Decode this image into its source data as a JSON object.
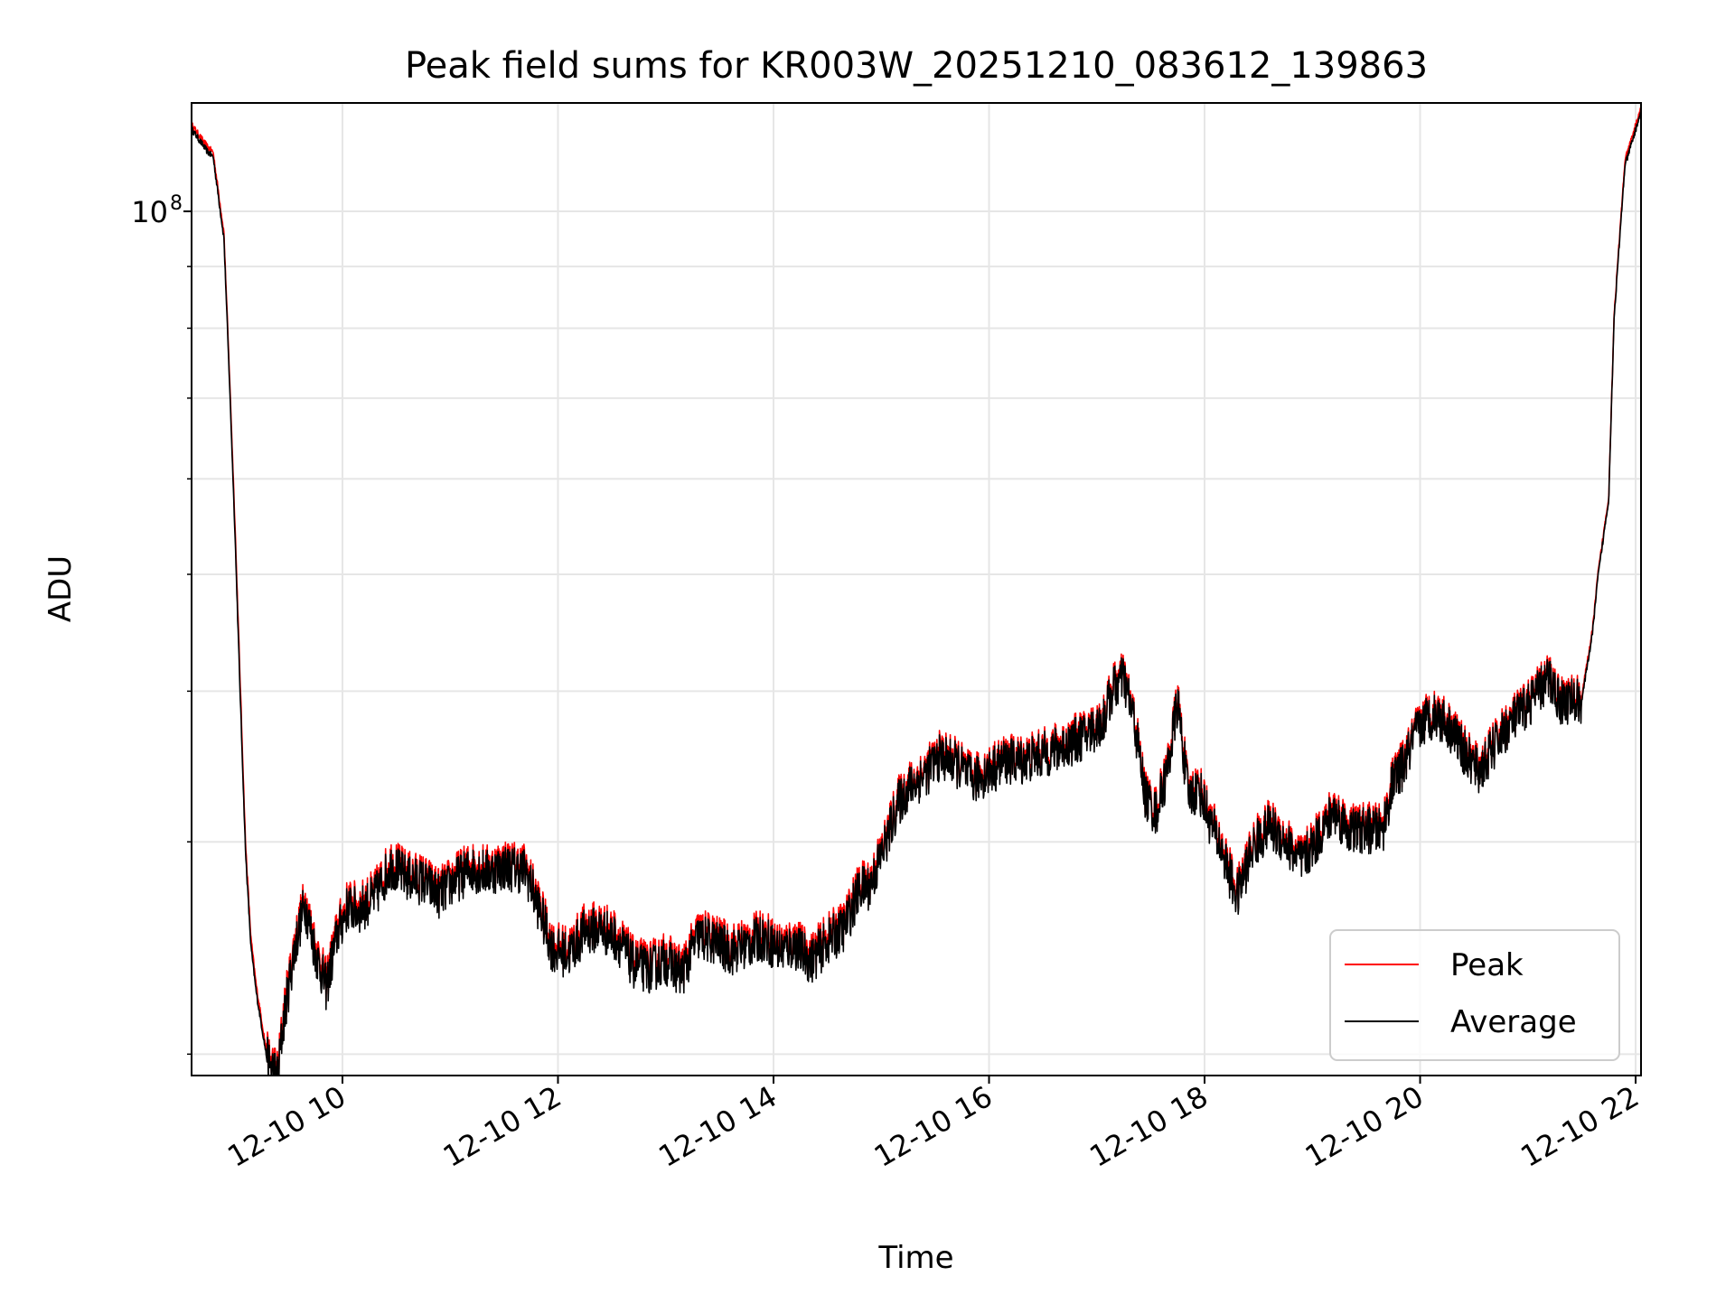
{
  "chart_data": {
    "type": "line",
    "title": "Peak field sums for KR003W_20251210_083612_139863",
    "xlabel": "Time",
    "ylabel": "ADU",
    "y_scale": "log",
    "xlim_hours": [
      8.6,
      22.05
    ],
    "ylim": [
      19200000,
      123000000
    ],
    "x_ticks": [
      {
        "hour": 10,
        "label": "12-10 10"
      },
      {
        "hour": 12,
        "label": "12-10 12"
      },
      {
        "hour": 14,
        "label": "12-10 14"
      },
      {
        "hour": 16,
        "label": "12-10 16"
      },
      {
        "hour": 18,
        "label": "12-10 18"
      },
      {
        "hour": 20,
        "label": "12-10 20"
      },
      {
        "hour": 22,
        "label": "12-10 22"
      }
    ],
    "y_major_tick": {
      "value": 100000000,
      "base": "10",
      "exponent": "8"
    },
    "y_minor_ticks": [
      20000000,
      30000000,
      40000000,
      50000000,
      60000000,
      70000000,
      80000000,
      90000000
    ],
    "grid": true,
    "legend_position": "lower-right",
    "colors": {
      "peak": "#ff0000",
      "average": "#000000",
      "grid": "#e6e6e6"
    },
    "series": [
      {
        "name": "Peak",
        "color": "#ff0000",
        "x": [
          8.6,
          8.75,
          8.8,
          8.9,
          8.95,
          9.0,
          9.05,
          9.1,
          9.15,
          9.2,
          9.3,
          9.4,
          9.45,
          9.55,
          9.65,
          9.75,
          9.85,
          9.95,
          10.05,
          10.15,
          10.3,
          10.45,
          10.6,
          10.75,
          10.9,
          11.05,
          11.2,
          11.35,
          11.5,
          11.7,
          11.85,
          11.95,
          12.1,
          12.25,
          12.4,
          12.55,
          12.7,
          12.85,
          13.0,
          13.15,
          13.3,
          13.45,
          13.6,
          13.75,
          13.9,
          14.05,
          14.2,
          14.35,
          14.5,
          14.65,
          14.8,
          14.9,
          15.05,
          15.15,
          15.25,
          15.4,
          15.55,
          15.7,
          15.85,
          16.0,
          16.15,
          16.3,
          16.45,
          16.6,
          16.75,
          16.9,
          17.05,
          17.15,
          17.25,
          17.35,
          17.45,
          17.55,
          17.65,
          17.75,
          17.85,
          17.95,
          18.05,
          18.15,
          18.3,
          18.45,
          18.6,
          18.75,
          18.9,
          19.05,
          19.2,
          19.35,
          19.5,
          19.65,
          19.75,
          19.85,
          19.95,
          20.05,
          20.15,
          20.3,
          20.45,
          20.55,
          20.65,
          20.8,
          20.95,
          21.1,
          21.2,
          21.3,
          21.5,
          21.6,
          21.65,
          21.75,
          21.8,
          21.9,
          22.05
        ],
        "y": [
          118000000,
          113000000,
          112000000,
          96000000,
          74000000,
          56000000,
          41000000,
          30000000,
          25000000,
          22800000,
          20000000,
          19400000,
          21500000,
          24600000,
          27000000,
          24600000,
          23000000,
          25400000,
          26800000,
          26600000,
          27300000,
          29000000,
          28300000,
          28100000,
          27400000,
          28200000,
          28800000,
          28600000,
          28900000,
          28700000,
          26300000,
          24700000,
          24500000,
          25600000,
          25700000,
          25200000,
          24000000,
          23800000,
          24200000,
          23600000,
          25300000,
          25100000,
          24600000,
          24900000,
          25300000,
          24700000,
          24900000,
          24200000,
          25100000,
          25700000,
          27700000,
          27900000,
          30400000,
          32500000,
          33500000,
          34400000,
          35600000,
          35100000,
          34000000,
          34600000,
          35300000,
          35300000,
          35600000,
          36000000,
          36500000,
          37100000,
          37900000,
          40500000,
          41300000,
          38000000,
          33000000,
          32000000,
          34500000,
          39500000,
          33000000,
          33500000,
          31500000,
          30000000,
          27300000,
          30000000,
          31200000,
          30300000,
          29100000,
          30500000,
          32100000,
          30900000,
          31000000,
          30900000,
          34000000,
          35000000,
          37000000,
          38200000,
          38600000,
          37400000,
          35400000,
          34600000,
          35800000,
          37600000,
          38800000,
          40300000,
          41300000,
          39500000,
          39600000,
          45000000,
          50000000,
          58000000,
          82000000,
          110000000,
          122000000
        ]
      },
      {
        "name": "Average",
        "color": "#000000",
        "x": [
          8.6,
          8.75,
          8.8,
          8.9,
          8.95,
          9.0,
          9.05,
          9.1,
          9.15,
          9.2,
          9.3,
          9.4,
          9.45,
          9.55,
          9.65,
          9.75,
          9.85,
          9.95,
          10.05,
          10.15,
          10.3,
          10.45,
          10.6,
          10.75,
          10.9,
          11.05,
          11.2,
          11.35,
          11.5,
          11.7,
          11.85,
          11.95,
          12.1,
          12.25,
          12.4,
          12.55,
          12.7,
          12.85,
          13.0,
          13.15,
          13.3,
          13.45,
          13.6,
          13.75,
          13.9,
          14.05,
          14.2,
          14.35,
          14.5,
          14.65,
          14.8,
          14.9,
          15.05,
          15.15,
          15.25,
          15.4,
          15.55,
          15.7,
          15.85,
          16.0,
          16.15,
          16.3,
          16.45,
          16.6,
          16.75,
          16.9,
          17.05,
          17.15,
          17.25,
          17.35,
          17.45,
          17.55,
          17.65,
          17.75,
          17.85,
          17.95,
          18.05,
          18.15,
          18.3,
          18.45,
          18.6,
          18.75,
          18.9,
          19.05,
          19.2,
          19.35,
          19.5,
          19.65,
          19.75,
          19.85,
          19.95,
          20.05,
          20.15,
          20.3,
          20.45,
          20.55,
          20.65,
          20.8,
          20.95,
          21.1,
          21.2,
          21.3,
          21.5,
          21.6,
          21.65,
          21.75,
          21.8,
          21.9,
          22.05
        ],
        "y": [
          117000000,
          112000000,
          111000000,
          95000000,
          73000000,
          55000000,
          40000000,
          29500000,
          24600000,
          22500000,
          19800000,
          19200000,
          21200000,
          24300000,
          26700000,
          24300000,
          22700000,
          25100000,
          26500000,
          26300000,
          27000000,
          28700000,
          28000000,
          27800000,
          27100000,
          27900000,
          28500000,
          28300000,
          28600000,
          28400000,
          26000000,
          24400000,
          24200000,
          25300000,
          25400000,
          24900000,
          23700000,
          23500000,
          23900000,
          23300000,
          25000000,
          24800000,
          24300000,
          24600000,
          25000000,
          24400000,
          24600000,
          23900000,
          24800000,
          25400000,
          27400000,
          27600000,
          30100000,
          32200000,
          33200000,
          34100000,
          35300000,
          34800000,
          33700000,
          34300000,
          35000000,
          35000000,
          35300000,
          35700000,
          36200000,
          36800000,
          37600000,
          40200000,
          41000000,
          37700000,
          32700000,
          31700000,
          34200000,
          39200000,
          32700000,
          33200000,
          31200000,
          29700000,
          27000000,
          29700000,
          30900000,
          30000000,
          28800000,
          30200000,
          31800000,
          30600000,
          30700000,
          30600000,
          33700000,
          34700000,
          36700000,
          37900000,
          38300000,
          37100000,
          35100000,
          34300000,
          35500000,
          37300000,
          38500000,
          40000000,
          41000000,
          39200000,
          39300000,
          44700000,
          49700000,
          57700000,
          81500000,
          109000000,
          121000000
        ]
      }
    ]
  }
}
